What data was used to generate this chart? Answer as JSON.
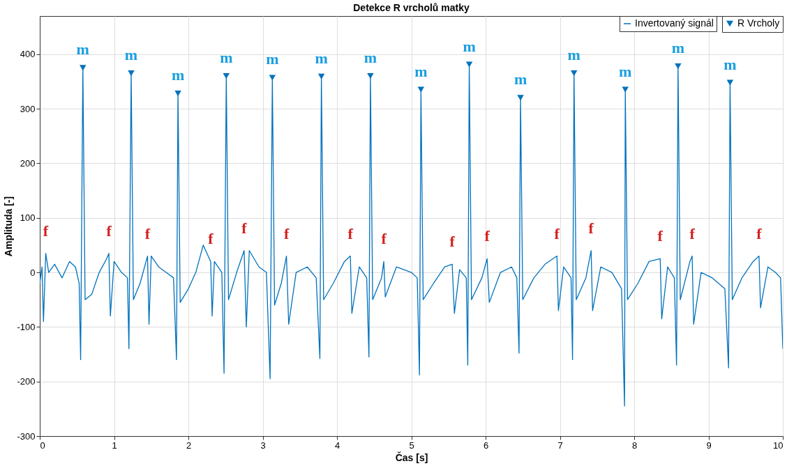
{
  "chart_data": {
    "type": "line",
    "title": "Detekce R vrcholů matky",
    "xlabel": "Čas [s]",
    "ylabel": "Amplituda [-]",
    "xlim": [
      0,
      10
    ],
    "xticks": [
      0,
      1,
      2,
      3,
      4,
      5,
      6,
      7,
      8,
      9,
      10
    ],
    "ylim": [
      -300,
      470
    ],
    "yticks": [
      -300,
      -200,
      -100,
      0,
      100,
      200,
      300,
      400
    ],
    "grid": true,
    "legend": "top right",
    "series": [
      {
        "name": "Invertovaný signál",
        "color": "#0072bd",
        "marker": "none",
        "x": [
          0,
          0.03,
          0.05,
          0.08,
          0.12,
          0.2,
          0.3,
          0.4,
          0.48,
          0.53,
          0.55,
          0.58,
          0.61,
          0.7,
          0.8,
          0.9,
          0.93,
          0.95,
          1.0,
          1.1,
          1.18,
          1.2,
          1.23,
          1.26,
          1.35,
          1.45,
          1.47,
          1.5,
          1.6,
          1.7,
          1.8,
          1.84,
          1.86,
          1.89,
          2.0,
          2.1,
          2.2,
          2.3,
          2.32,
          2.35,
          2.45,
          2.48,
          2.51,
          2.54,
          2.65,
          2.75,
          2.78,
          2.82,
          2.95,
          3.05,
          3.1,
          3.13,
          3.16,
          3.25,
          3.32,
          3.35,
          3.45,
          3.6,
          3.72,
          3.77,
          3.79,
          3.82,
          3.95,
          4.1,
          4.18,
          4.2,
          4.3,
          4.4,
          4.43,
          4.45,
          4.48,
          4.6,
          4.63,
          4.65,
          4.8,
          5.0,
          5.08,
          5.11,
          5.13,
          5.16,
          5.3,
          5.45,
          5.55,
          5.58,
          5.65,
          5.74,
          5.76,
          5.78,
          5.81,
          5.95,
          6.02,
          6.05,
          6.2,
          6.35,
          6.42,
          6.45,
          6.47,
          6.5,
          6.65,
          6.8,
          6.96,
          6.98,
          7.05,
          7.15,
          7.17,
          7.19,
          7.22,
          7.35,
          7.42,
          7.44,
          7.55,
          7.7,
          7.83,
          7.87,
          7.88,
          7.91,
          8.05,
          8.2,
          8.35,
          8.37,
          8.45,
          8.54,
          8.57,
          8.59,
          8.62,
          8.75,
          8.78,
          8.8,
          8.9,
          9.05,
          9.22,
          9.27,
          9.29,
          9.32,
          9.45,
          9.6,
          9.68,
          9.7,
          9.8,
          9.9,
          9.97,
          10.0
        ],
        "values": [
          -20,
          10,
          -90,
          35,
          0,
          15,
          -10,
          20,
          10,
          -20,
          -160,
          375,
          -50,
          -40,
          0,
          25,
          35,
          -80,
          20,
          0,
          -10,
          -140,
          365,
          -50,
          -20,
          30,
          -95,
          30,
          10,
          0,
          -10,
          -160,
          328,
          -55,
          -30,
          0,
          50,
          20,
          -80,
          20,
          0,
          -185,
          360,
          -50,
          0,
          40,
          -100,
          40,
          10,
          0,
          -195,
          357,
          -60,
          -20,
          30,
          -95,
          0,
          10,
          -10,
          -158,
          359,
          -50,
          -20,
          20,
          30,
          -75,
          10,
          -10,
          -155,
          360,
          -50,
          -10,
          20,
          -45,
          10,
          0,
          -10,
          -188,
          335,
          -50,
          -20,
          10,
          15,
          -75,
          5,
          -10,
          -170,
          381,
          -50,
          -10,
          25,
          -55,
          0,
          10,
          -10,
          -148,
          320,
          -50,
          -10,
          15,
          30,
          -70,
          10,
          -10,
          -160,
          365,
          -50,
          -10,
          40,
          -70,
          10,
          0,
          -30,
          -245,
          335,
          -50,
          -20,
          20,
          25,
          -85,
          10,
          -10,
          -170,
          378,
          -50,
          20,
          30,
          -95,
          0,
          -10,
          -30,
          -175,
          348,
          -50,
          -10,
          20,
          30,
          -65,
          10,
          0,
          -10,
          -140
        ]
      },
      {
        "name": "R Vrcholy",
        "type": "scatter",
        "color": "#0072bd",
        "marker": "triangle",
        "x": [
          0.58,
          1.23,
          1.86,
          2.51,
          3.13,
          3.79,
          4.45,
          5.13,
          5.78,
          6.47,
          7.19,
          7.88,
          8.59,
          9.29
        ],
        "values": [
          375,
          365,
          328,
          360,
          357,
          359,
          360,
          335,
          381,
          320,
          365,
          335,
          378,
          348
        ]
      }
    ],
    "annotations": [
      {
        "text": "m",
        "x": 0.58,
        "y": 375
      },
      {
        "text": "m",
        "x": 1.23,
        "y": 365
      },
      {
        "text": "m",
        "x": 1.86,
        "y": 328
      },
      {
        "text": "m",
        "x": 2.51,
        "y": 360
      },
      {
        "text": "m",
        "x": 3.13,
        "y": 357
      },
      {
        "text": "m",
        "x": 3.79,
        "y": 359
      },
      {
        "text": "m",
        "x": 4.45,
        "y": 360
      },
      {
        "text": "m",
        "x": 5.13,
        "y": 335
      },
      {
        "text": "m",
        "x": 5.78,
        "y": 381
      },
      {
        "text": "m",
        "x": 6.47,
        "y": 320
      },
      {
        "text": "m",
        "x": 7.19,
        "y": 365
      },
      {
        "text": "m",
        "x": 7.88,
        "y": 335
      },
      {
        "text": "m",
        "x": 8.59,
        "y": 378
      },
      {
        "text": "m",
        "x": 9.29,
        "y": 348
      },
      {
        "text": "f",
        "x": 0.08,
        "y": 35
      },
      {
        "text": "f",
        "x": 0.93,
        "y": 35
      },
      {
        "text": "f",
        "x": 1.45,
        "y": 30
      },
      {
        "text": "f",
        "x": 2.3,
        "y": 20
      },
      {
        "text": "f",
        "x": 2.75,
        "y": 40
      },
      {
        "text": "f",
        "x": 3.32,
        "y": 30
      },
      {
        "text": "f",
        "x": 4.18,
        "y": 30
      },
      {
        "text": "f",
        "x": 4.63,
        "y": 20
      },
      {
        "text": "f",
        "x": 5.55,
        "y": 15
      },
      {
        "text": "f",
        "x": 6.02,
        "y": 25
      },
      {
        "text": "f",
        "x": 6.96,
        "y": 30
      },
      {
        "text": "f",
        "x": 7.42,
        "y": 40
      },
      {
        "text": "f",
        "x": 8.35,
        "y": 25
      },
      {
        "text": "f",
        "x": 8.78,
        "y": 30
      },
      {
        "text": "f",
        "x": 9.68,
        "y": 30
      }
    ]
  }
}
